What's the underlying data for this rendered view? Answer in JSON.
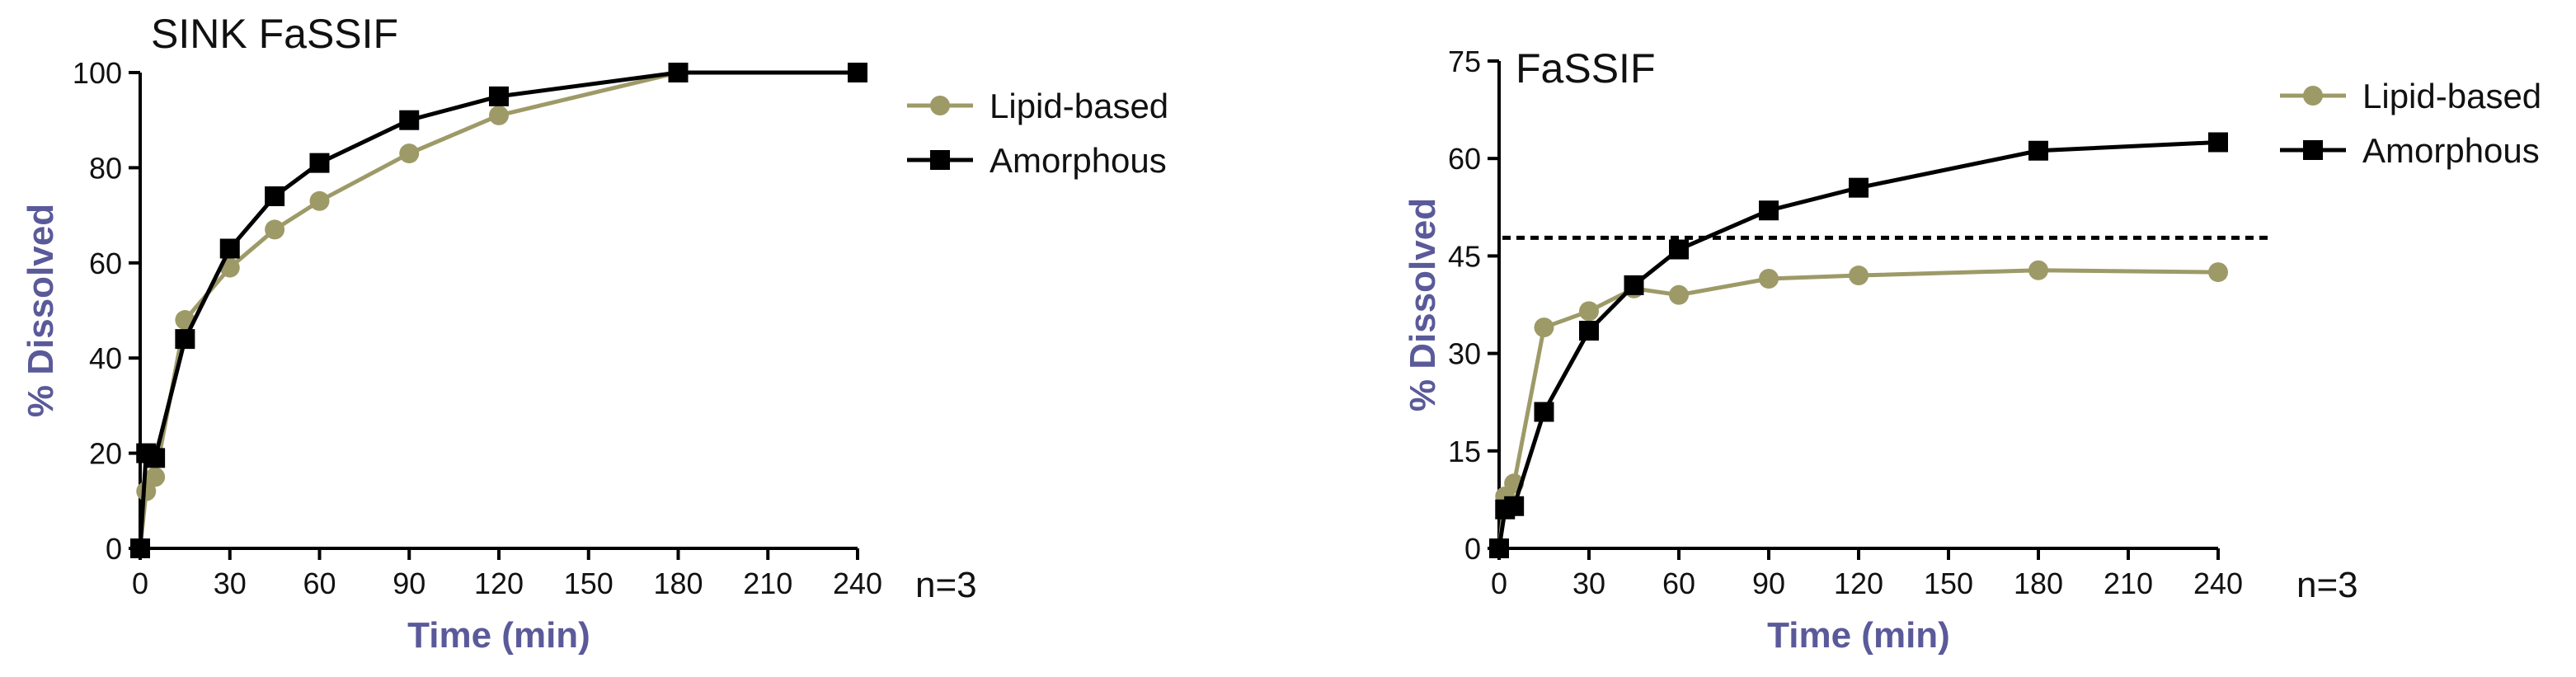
{
  "chart_data": [
    {
      "type": "line",
      "title": "SINK FaSSIF",
      "xlabel": "Time (min)",
      "ylabel": "% Dissolved",
      "xlim": [
        0,
        240
      ],
      "ylim": [
        0,
        100
      ],
      "xticks": [
        0,
        30,
        60,
        90,
        120,
        150,
        180,
        210,
        240
      ],
      "yticks": [
        0,
        20,
        40,
        60,
        80,
        100
      ],
      "note": "n=3",
      "legend_position": "right",
      "series": [
        {
          "name": "Lipid-based",
          "color": "#9e9a68",
          "marker": "circle",
          "x": [
            0,
            2,
            5,
            15,
            30,
            45,
            60,
            90,
            120,
            180
          ],
          "y": [
            0,
            12,
            15,
            48,
            59,
            67,
            73,
            83,
            91,
            100
          ]
        },
        {
          "name": "Amorphous",
          "color": "#000000",
          "marker": "square",
          "x": [
            0,
            2,
            5,
            15,
            30,
            45,
            60,
            90,
            120,
            180,
            240
          ],
          "y": [
            0,
            20,
            19,
            44,
            63,
            74,
            81,
            90,
            95,
            100,
            100
          ]
        }
      ]
    },
    {
      "type": "line",
      "title": "FaSSIF",
      "xlabel": "Time (min)",
      "ylabel": "% Dissolved",
      "xlim": [
        0,
        240
      ],
      "ylim": [
        0,
        75
      ],
      "xticks": [
        0,
        30,
        60,
        90,
        120,
        150,
        180,
        210,
        240
      ],
      "yticks": [
        0,
        15,
        30,
        45,
        60,
        75
      ],
      "note": "n=3",
      "legend_position": "top-right",
      "reference_line": 47.8,
      "series": [
        {
          "name": "Lipid-based",
          "color": "#9e9a68",
          "marker": "circle",
          "x": [
            0,
            2,
            5,
            15,
            30,
            45,
            60,
            90,
            120,
            180,
            240
          ],
          "y": [
            0,
            8,
            10,
            34,
            36.5,
            40,
            39,
            41.5,
            42,
            42.8,
            42.5
          ]
        },
        {
          "name": "Amorphous",
          "color": "#000000",
          "marker": "square",
          "x": [
            0,
            2,
            5,
            15,
            30,
            45,
            60,
            90,
            120,
            180,
            240
          ],
          "y": [
            0,
            6,
            6.5,
            21,
            33.5,
            40.5,
            46,
            52,
            55.5,
            61.2,
            62.5
          ]
        }
      ]
    }
  ]
}
